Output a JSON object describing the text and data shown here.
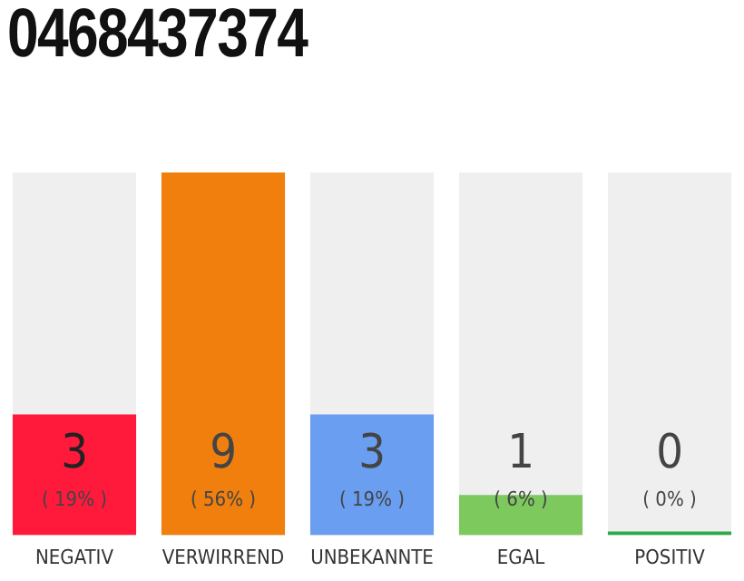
{
  "chart_data": {
    "type": "bar",
    "title": "0468437374",
    "categories": [
      "NEGATIV",
      "VERWIRREND",
      "UNBEKANNTE",
      "EGAL",
      "POSITIV"
    ],
    "values": [
      3,
      9,
      3,
      1,
      0
    ],
    "colors": [
      "#ff1a3c",
      "#f07f0e",
      "#6a9ef0",
      "#7dc95e",
      "#2aaa4a"
    ],
    "value_labels": [
      "3\n( 19% )",
      "9\n( 56% )",
      "3\n( 19% )",
      "1\n( 6% )",
      "0\n( 0% )"
    ],
    "ylim": [
      0,
      9
    ],
    "tick_labels": "x",
    "grid": false,
    "legend": false
  }
}
